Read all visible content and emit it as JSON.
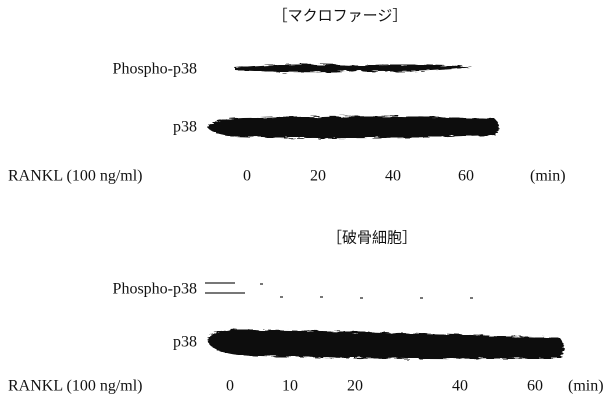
{
  "panels": [
    {
      "title": "［マクロファージ］",
      "rows": [
        "Phospho-p38",
        "p38"
      ],
      "treatment": "RANKL (100 ng/ml)",
      "times": [
        "0",
        "20",
        "40",
        "60"
      ],
      "unit": "(min)"
    },
    {
      "title": "［破骨細胞］",
      "rows": [
        "Phospho-p38",
        "p38"
      ],
      "treatment": "RANKL (100 ng/ml)",
      "times": [
        "0",
        "10",
        "20",
        "40",
        "60"
      ],
      "unit": "(min)"
    }
  ]
}
